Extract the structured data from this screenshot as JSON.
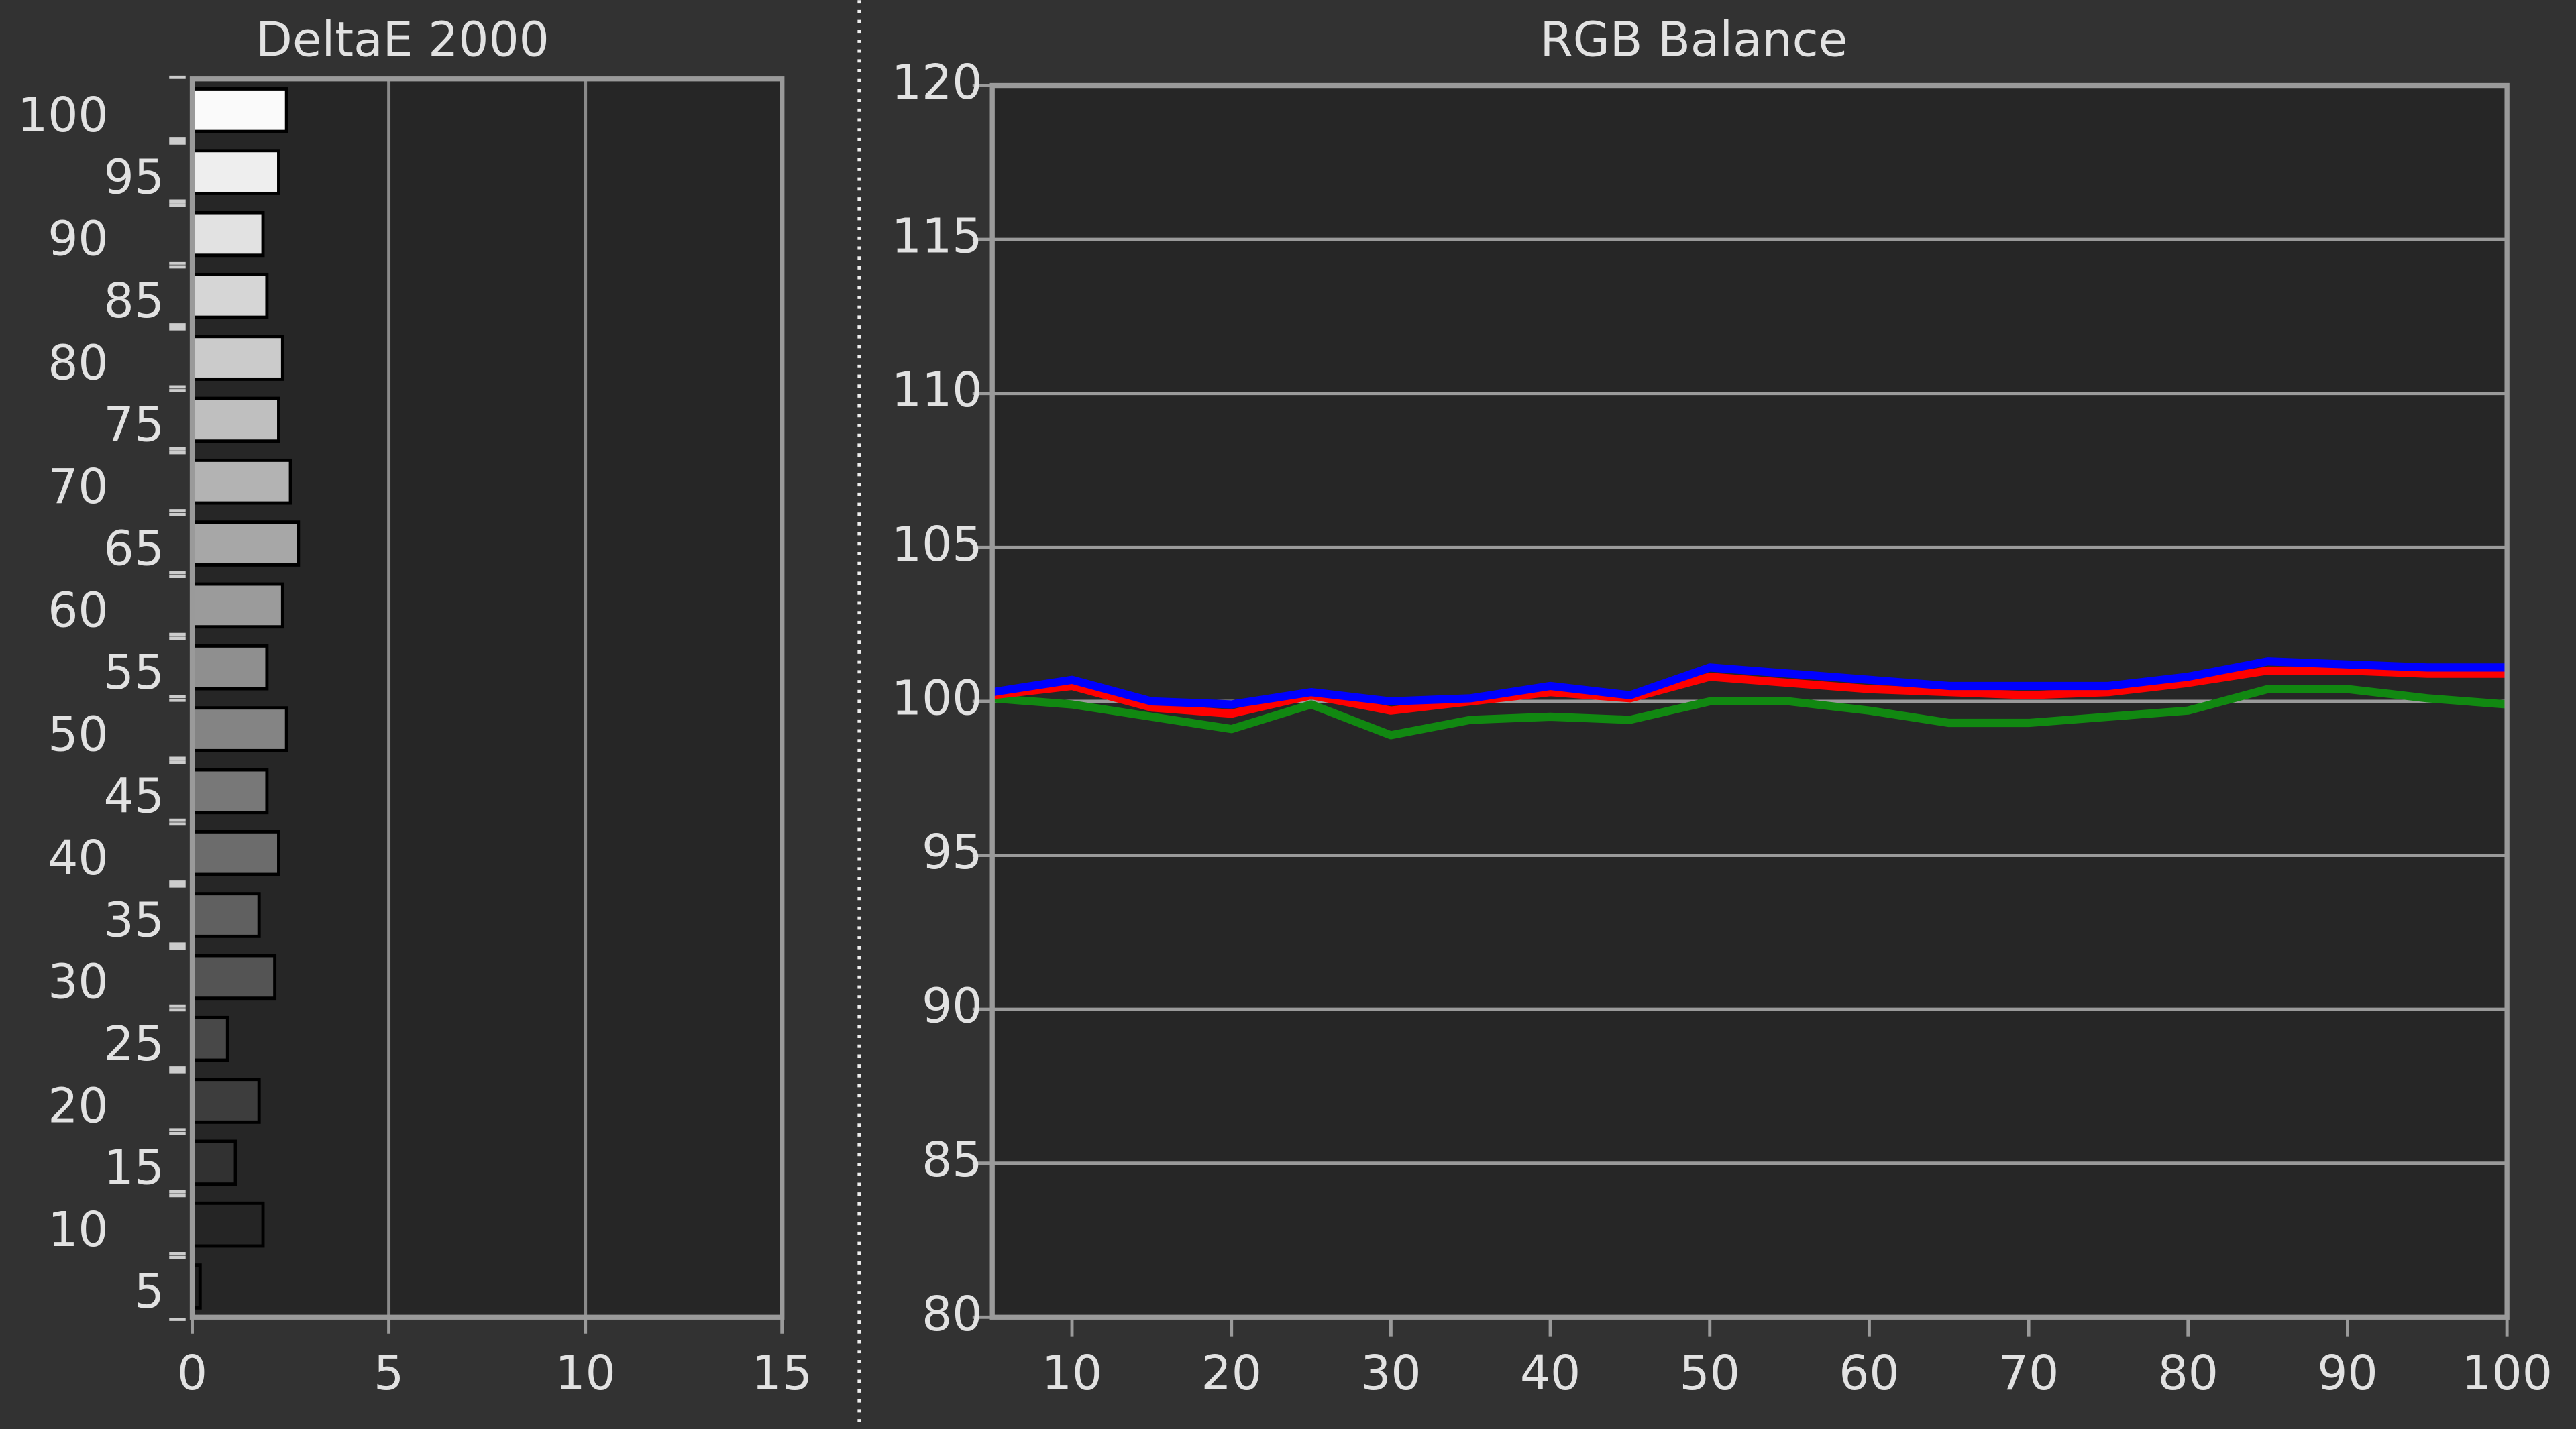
{
  "chart_data": [
    {
      "type": "hbar",
      "title": "DeltaE 2000",
      "categories": [
        "100",
        "95",
        "90",
        "85",
        "80",
        "75",
        "70",
        "65",
        "60",
        "55",
        "50",
        "45",
        "40",
        "35",
        "30",
        "25",
        "20",
        "15",
        "10",
        "5"
      ],
      "values": [
        2.4,
        2.2,
        1.8,
        1.9,
        2.3,
        2.2,
        2.5,
        2.7,
        2.3,
        1.9,
        2.4,
        1.9,
        2.2,
        1.7,
        2.1,
        0.9,
        1.7,
        1.1,
        1.8,
        0.2
      ],
      "xlim": [
        0,
        15
      ],
      "xticks": [
        0,
        5,
        10,
        15
      ],
      "grid": true
    },
    {
      "type": "line",
      "title": "RGB Balance",
      "x": [
        5,
        10,
        15,
        20,
        25,
        30,
        35,
        40,
        45,
        50,
        55,
        60,
        65,
        70,
        75,
        80,
        85,
        90,
        95,
        100
      ],
      "series": [
        {
          "name": "Green",
          "color": "#118811",
          "values": [
            100.1,
            99.9,
            99.5,
            99.1,
            99.9,
            98.9,
            99.4,
            99.5,
            99.4,
            100.0,
            100.0,
            99.7,
            99.3,
            99.3,
            99.5,
            99.7,
            100.4,
            100.4,
            100.1,
            99.9
          ]
        },
        {
          "name": "Red",
          "color": "#ff0000",
          "values": [
            100.2,
            100.5,
            99.8,
            99.6,
            100.2,
            99.7,
            100.0,
            100.3,
            100.1,
            100.8,
            100.6,
            100.4,
            100.3,
            100.2,
            100.3,
            100.6,
            101.0,
            101.0,
            100.9,
            100.9
          ]
        },
        {
          "name": "Blue",
          "color": "#0000ff",
          "values": [
            100.3,
            100.7,
            100.0,
            99.9,
            100.3,
            100.0,
            100.1,
            100.5,
            100.2,
            101.1,
            100.9,
            100.7,
            100.5,
            100.5,
            100.5,
            100.8,
            101.3,
            101.2,
            101.1,
            101.1
          ]
        }
      ],
      "xlim": [
        5,
        100
      ],
      "xticks": [
        10,
        20,
        30,
        40,
        50,
        60,
        70,
        80,
        90,
        100
      ],
      "ylim": [
        80,
        120
      ],
      "yticks": [
        80,
        85,
        90,
        95,
        100,
        105,
        110,
        115,
        120
      ],
      "grid": true
    }
  ]
}
